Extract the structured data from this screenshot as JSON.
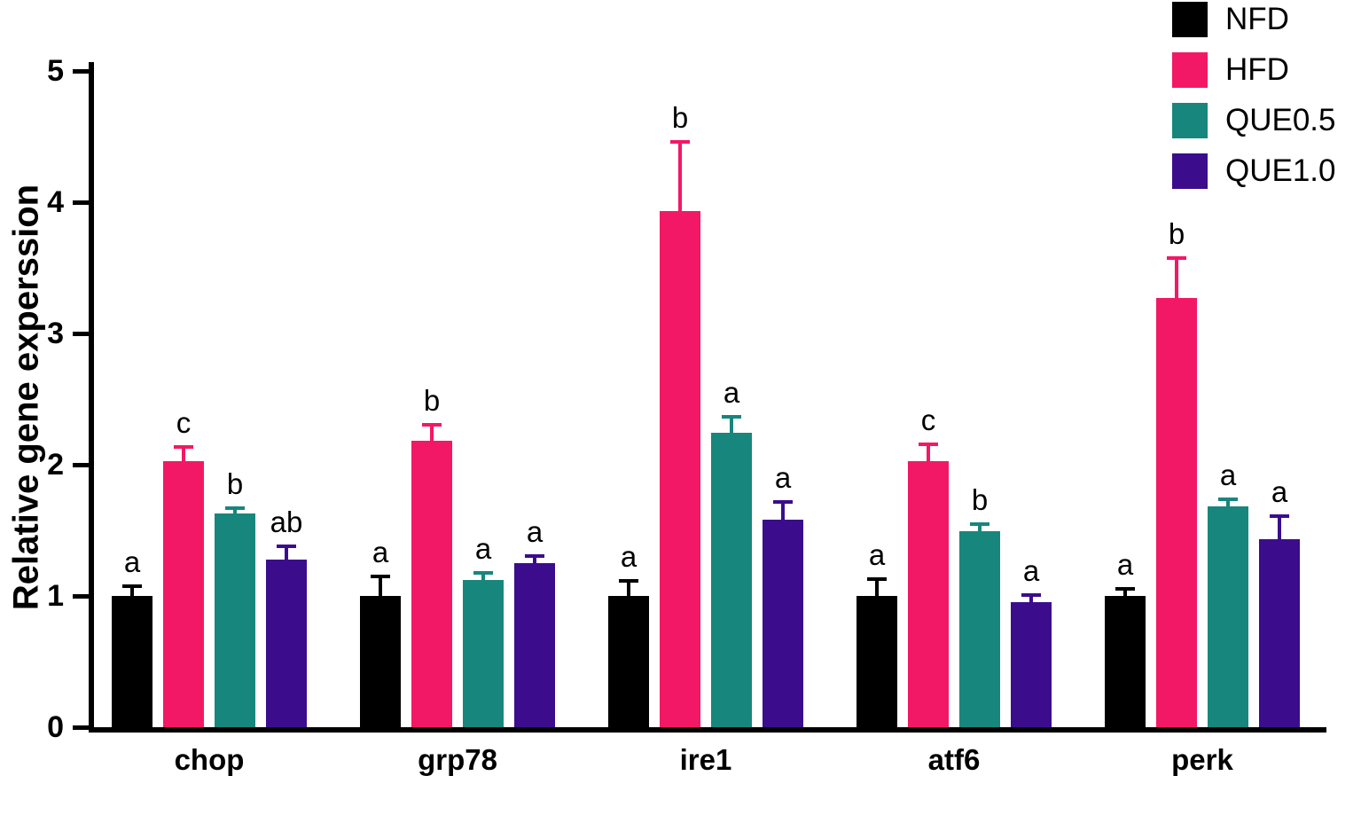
{
  "figure": {
    "ylabel": "Relative gene experssion"
  },
  "chart_data": {
    "type": "bar",
    "title": "",
    "xlabel": "",
    "ylabel": "Relative gene experssion",
    "ylim": [
      0,
      5
    ],
    "yticks": [
      0,
      1,
      2,
      3,
      4,
      5
    ],
    "grid": false,
    "legend_position": "top-right",
    "categories": [
      "chop",
      "grp78",
      "ire1",
      "atf6",
      "perk"
    ],
    "series": [
      {
        "name": "NFD",
        "color": "#000000",
        "values": [
          1.0,
          1.0,
          1.0,
          1.0,
          1.0
        ],
        "errors": [
          0.09,
          0.16,
          0.13,
          0.14,
          0.07
        ],
        "letters": [
          "a",
          "a",
          "a",
          "a",
          "a"
        ]
      },
      {
        "name": "HFD",
        "color": "#F31866",
        "values": [
          2.03,
          2.18,
          3.93,
          2.03,
          3.27
        ],
        "errors": [
          0.12,
          0.14,
          0.54,
          0.14,
          0.32
        ],
        "letters": [
          "c",
          "b",
          "b",
          "c",
          "b"
        ]
      },
      {
        "name": "QUE0.5",
        "color": "#17867D",
        "values": [
          1.63,
          1.12,
          2.24,
          1.49,
          1.68
        ],
        "errors": [
          0.05,
          0.07,
          0.14,
          0.07,
          0.07
        ],
        "letters": [
          "b",
          "a",
          "a",
          "b",
          "a"
        ]
      },
      {
        "name": "QUE1.0",
        "color": "#3B0D8D",
        "values": [
          1.28,
          1.25,
          1.58,
          0.95,
          1.43
        ],
        "errors": [
          0.11,
          0.07,
          0.15,
          0.07,
          0.19
        ],
        "letters": [
          "ab",
          "a",
          "a",
          "a",
          "a"
        ]
      }
    ]
  }
}
